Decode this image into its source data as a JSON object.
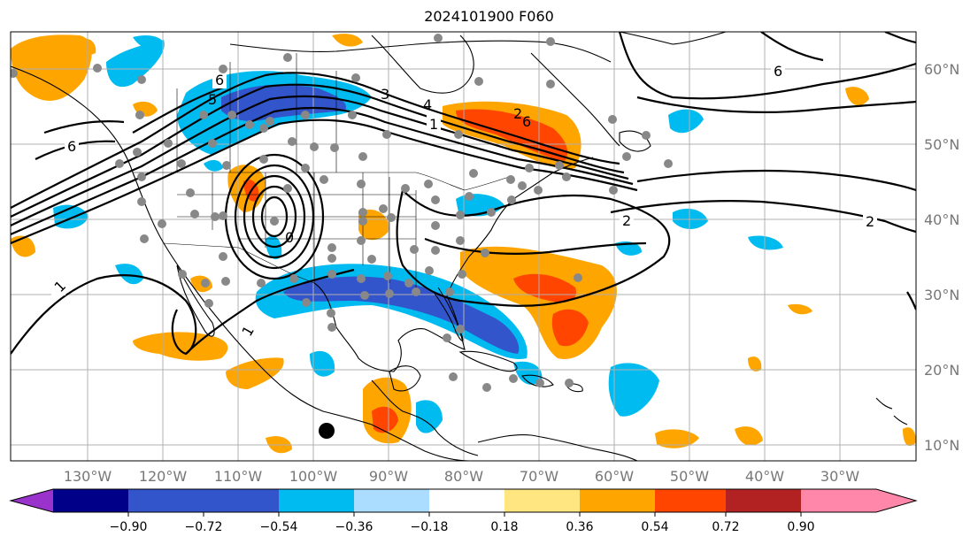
{
  "title": "2024101900 F060",
  "map": {
    "lon_range": [
      -135,
      -15
    ],
    "lat_range": [
      8,
      65
    ],
    "lon_ticks": [
      "130°W",
      "120°W",
      "110°W",
      "100°W",
      "90°W",
      "80°W",
      "70°W",
      "60°W",
      "50°W",
      "40°W",
      "30°W"
    ],
    "lat_ticks": [
      "60°N",
      "50°N",
      "40°N",
      "30°N",
      "20°N",
      "10°N"
    ],
    "contour_labels": [
      "6",
      "6",
      "5",
      "4",
      "3",
      "2",
      "1",
      "6",
      "6",
      "2",
      "2",
      "0",
      "1",
      "1"
    ]
  },
  "colorbar": {
    "ticks": [
      "−0.90",
      "−0.72",
      "−0.54",
      "−0.36",
      "−0.18",
      "0.18",
      "0.36",
      "0.54",
      "0.72",
      "0.90"
    ],
    "colors": {
      "lt_neg_090": "#9933cc",
      "neg_090_072": "#000088",
      "neg_072_054": "#3355cc",
      "neg_054_036": "#00bbf0",
      "neg_036_018": "#aaddff",
      "neg_018_018": "#ffffff",
      "pos_018_036": "#ffe680",
      "pos_036_054": "#ffa500",
      "pos_054_072": "#ff4500",
      "pos_072_090": "#b22222",
      "gt_090": "#ff88aa"
    }
  },
  "markers": {
    "large_dot_color": "#000000",
    "station_dot_color": "#888888"
  }
}
